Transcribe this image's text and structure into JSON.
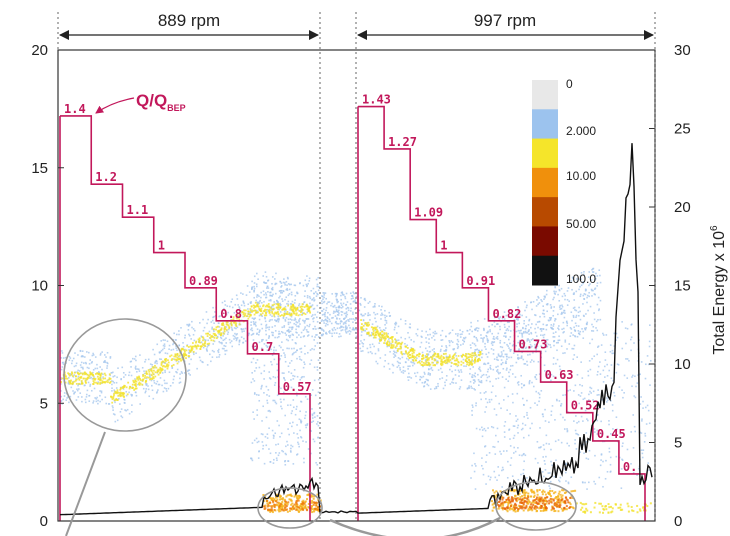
{
  "chart_data": {
    "type": "line",
    "title": "",
    "xlabel": "",
    "ylabel": "",
    "y2label": "Total Energy x 10",
    "y2label_sup": "6",
    "ylim": [
      0,
      20
    ],
    "y2lim": [
      0,
      30
    ],
    "left_ticks": [
      "0",
      "5",
      "10",
      "15",
      "20"
    ],
    "right_ticks": [
      "0",
      "5",
      "10",
      "15",
      "20",
      "25",
      "30"
    ],
    "segments": [
      {
        "label": "889 rpm"
      },
      {
        "label": "997 rpm"
      }
    ],
    "flow_label": "Q/Q",
    "flow_label_sub": "BEP",
    "flow_steps": [
      {
        "segment": 0,
        "label": "1.4",
        "y": 17.2
      },
      {
        "segment": 0,
        "label": "1.2",
        "y": 14.3
      },
      {
        "segment": 0,
        "label": "1.1",
        "y": 12.9
      },
      {
        "segment": 0,
        "label": "1",
        "y": 11.4
      },
      {
        "segment": 0,
        "label": "0.89",
        "y": 9.9
      },
      {
        "segment": 0,
        "label": "0.8",
        "y": 8.5
      },
      {
        "segment": 0,
        "label": "0.7",
        "y": 7.1
      },
      {
        "segment": 0,
        "label": "0.57",
        "y": 5.4
      },
      {
        "segment": 1,
        "label": "1.43",
        "y": 17.6
      },
      {
        "segment": 1,
        "label": "1.27",
        "y": 15.8
      },
      {
        "segment": 1,
        "label": "1.09",
        "y": 12.8
      },
      {
        "segment": 1,
        "label": "1",
        "y": 11.4
      },
      {
        "segment": 1,
        "label": "0.91",
        "y": 9.9
      },
      {
        "segment": 1,
        "label": "0.82",
        "y": 8.5
      },
      {
        "segment": 1,
        "label": "0.73",
        "y": 7.2
      },
      {
        "segment": 1,
        "label": "0.63",
        "y": 5.9
      },
      {
        "segment": 1,
        "label": "0.52",
        "y": 4.6
      },
      {
        "segment": 1,
        "label": "0.45",
        "y": 3.4
      },
      {
        "segment": 1,
        "label": "0.",
        "y": 2.0
      }
    ],
    "colorbar": {
      "labels": [
        "0",
        "2.000",
        "10.00",
        "50.00",
        "100.0"
      ],
      "colors": [
        "#e8e8e8",
        "#9cc3ee",
        "#f5e52a",
        "#f0900c",
        "#b84a00",
        "#7a0a00",
        "#111111"
      ]
    }
  }
}
